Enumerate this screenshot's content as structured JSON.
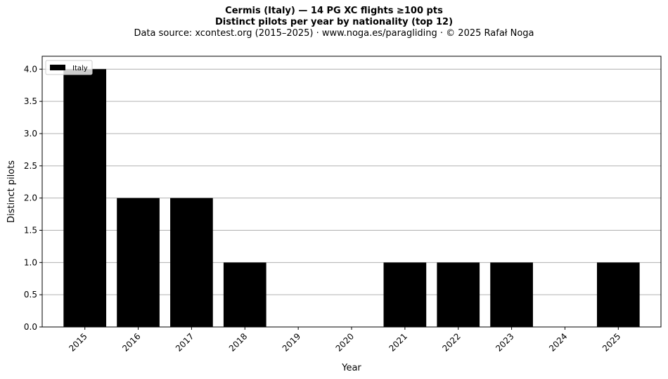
{
  "header": {
    "title": "Cermis (Italy)  —  14 PG XC flights ≥100 pts",
    "subtitle": "Distinct pilots per year by nationality (top 12)",
    "source": "Data source: xcontest.org (2015–2025)  ·  www.noga.es/paragliding  ·  © 2025 Rafał Noga"
  },
  "chart_data": {
    "type": "bar",
    "categories": [
      "2015",
      "2016",
      "2017",
      "2018",
      "2019",
      "2020",
      "2021",
      "2022",
      "2023",
      "2024",
      "2025"
    ],
    "series": [
      {
        "name": "Italy",
        "color": "#000000",
        "values": [
          4,
          2,
          2,
          1,
          0,
          0,
          1,
          1,
          1,
          0,
          1
        ]
      }
    ],
    "xlabel": "Year",
    "ylabel": "Distinct pilots",
    "ylim": [
      0,
      4.2
    ],
    "yticks": [
      "0.0",
      "0.5",
      "1.0",
      "1.5",
      "2.0",
      "2.5",
      "3.0",
      "3.5",
      "4.0"
    ],
    "grid": "y",
    "legend_position": "top-left"
  }
}
